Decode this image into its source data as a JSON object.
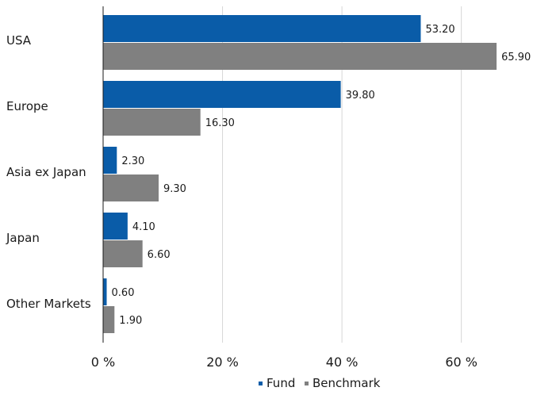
{
  "chart_data": {
    "type": "bar",
    "orientation": "horizontal",
    "categories": [
      "USA",
      "Europe",
      "Asia ex Japan",
      "Japan",
      "Other Markets"
    ],
    "series": [
      {
        "name": "Fund",
        "color": "#0a5ca8",
        "values": [
          53.2,
          39.8,
          2.3,
          4.1,
          0.6
        ],
        "labels": [
          "53.20",
          "39.80",
          "2.30",
          "4.10",
          "0.60"
        ]
      },
      {
        "name": "Benchmark",
        "color": "#808080",
        "values": [
          65.9,
          16.3,
          9.3,
          6.6,
          1.9
        ],
        "labels": [
          "65.90",
          "16.30",
          "9.30",
          "6.60",
          "1.90"
        ]
      }
    ],
    "xlim": [
      0,
      72
    ],
    "ticks": [
      {
        "value": 0,
        "label": "0 %"
      },
      {
        "value": 20,
        "label": "20 %"
      },
      {
        "value": 40,
        "label": "40 %"
      },
      {
        "value": 60,
        "label": "60 %"
      }
    ],
    "grid": true,
    "legend": "bottom-center",
    "title": "",
    "xlabel": "",
    "ylabel": ""
  }
}
